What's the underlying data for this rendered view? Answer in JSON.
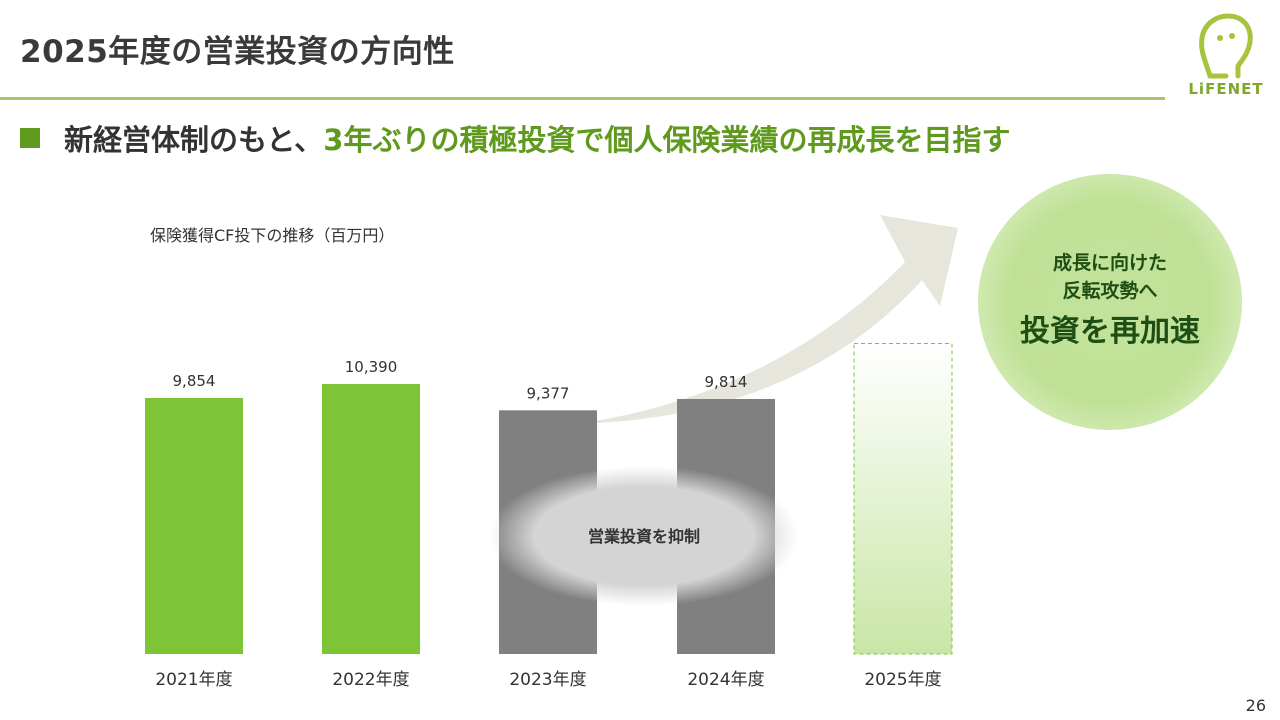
{
  "header": {
    "title": "2025年度の営業投資の方向性",
    "logo_text": "LiFENET"
  },
  "headline": {
    "part1": "新経営体制のもと、",
    "part2": "3年ぶりの積極投資で個人保険業績の再成長を目指す"
  },
  "callout": {
    "line1": "成長に向けた",
    "line2": "反転攻勢へ",
    "main": "投資を再加速"
  },
  "page_number": "26",
  "colors": {
    "bar_green": "#7dc536",
    "bar_gray": "#808080",
    "accent_green": "#5f9a1e",
    "dark_green_text": "#1f4e14",
    "arrow_beige": "#e7e6dc",
    "rule_green": "#a8c46a"
  },
  "chart_data": {
    "type": "bar",
    "title": "保険獲得CF投下の推移（百万円）",
    "categories": [
      "2021年度",
      "2022年度",
      "2023年度",
      "2024年度",
      "2025年度"
    ],
    "values": [
      9854,
      10390,
      9377,
      9814,
      null
    ],
    "value_labels": [
      "9,854",
      "10,390",
      "9,377",
      "9,814",
      ""
    ],
    "bar_styles": [
      "green",
      "green",
      "gray",
      "gray",
      "projected"
    ],
    "annotation": "営業投資を抑制",
    "ylim": [
      0,
      10390
    ],
    "grid": false,
    "legend": "none"
  }
}
